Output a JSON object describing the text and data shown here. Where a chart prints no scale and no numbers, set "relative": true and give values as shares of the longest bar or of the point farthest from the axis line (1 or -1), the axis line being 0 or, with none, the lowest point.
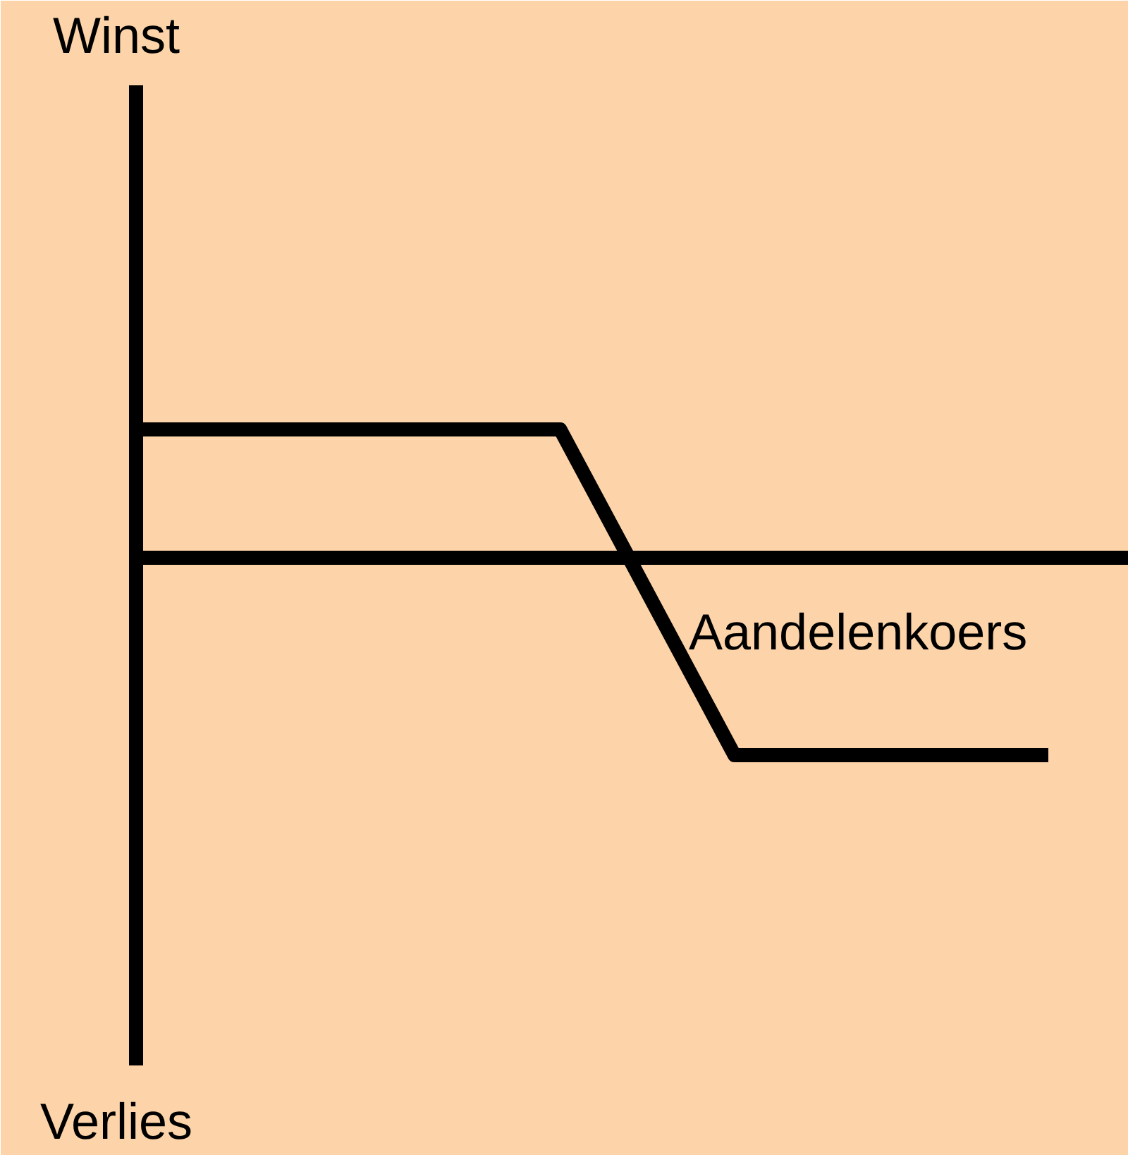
{
  "chart_data": {
    "type": "line",
    "relative": true,
    "xlabel": "Aandelenkoers",
    "annotations": [
      "Winst",
      "Verlies"
    ],
    "categories": [
      null,
      null,
      null,
      null,
      null,
      null,
      null,
      null,
      null,
      null,
      null,
      null,
      null,
      null,
      null,
      null,
      null,
      null,
      null,
      null,
      null,
      null,
      null,
      null,
      null,
      null,
      null
    ],
    "series": [
      {
        "color": "#000000",
        "values": [
          0.65,
          0.65,
          0.65,
          0.65,
          0.65,
          0.65,
          0.65,
          0.65,
          0.65,
          0.65,
          0.65,
          0.65,
          0.65,
          0.32,
          -0.01,
          -0.34,
          -0.67,
          -1,
          -1,
          -1,
          -1,
          -1,
          -1,
          -1,
          -1,
          -1,
          -1
        ]
      }
    ],
    "grid": false,
    "marker": "none",
    "line_style": "solid"
  }
}
